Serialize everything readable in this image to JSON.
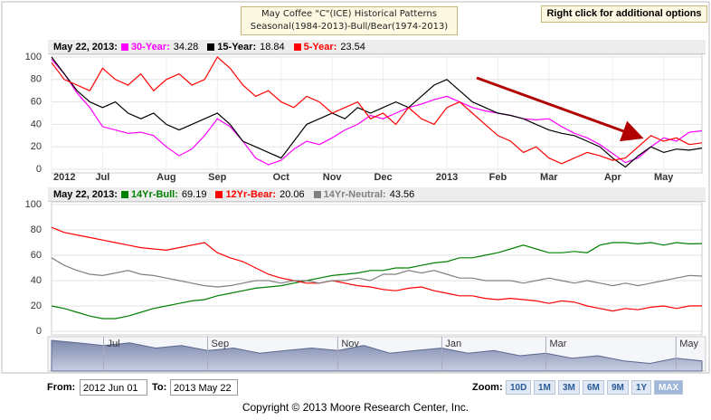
{
  "title": [
    "May Coffee \"C\"(ICE) Historical Patterns",
    "Seasonal(1984-2013)-Bull/Bear(1974-2013)"
  ],
  "options_hint": "Right click for additional options",
  "chart_data": [
    {
      "type": "line",
      "legend_date": "May 22, 2013:",
      "categories": [
        "2012",
        null,
        null,
        null,
        "Jul",
        null,
        null,
        null,
        null,
        "Aug",
        null,
        null,
        null,
        "Sep",
        null,
        null,
        null,
        null,
        "Oct",
        null,
        null,
        null,
        "Nov",
        null,
        null,
        null,
        "Dec",
        null,
        null,
        null,
        null,
        "2013",
        null,
        null,
        null,
        "Feb",
        null,
        null,
        null,
        "Mar",
        null,
        null,
        null,
        null,
        "Apr",
        null,
        null,
        null,
        "May",
        null,
        null,
        null
      ],
      "ylim": [
        0,
        100
      ],
      "yticks": [
        0,
        20,
        40,
        60,
        80,
        100
      ],
      "grid": true,
      "series": [
        {
          "name": "30-Year",
          "color": "#ff00ff",
          "current": 34.28,
          "values": [
            98,
            85,
            68,
            55,
            38,
            35,
            32,
            33,
            30,
            20,
            12,
            18,
            30,
            45,
            38,
            25,
            10,
            4,
            8,
            18,
            25,
            22,
            28,
            35,
            40,
            48,
            45,
            50,
            55,
            58,
            62,
            65,
            60,
            55,
            52,
            50,
            48,
            45,
            44,
            45,
            38,
            32,
            28,
            22,
            14,
            6,
            10,
            20,
            28,
            25,
            33,
            34.28
          ]
        },
        {
          "name": "15-Year",
          "color": "#000000",
          "current": 18.84,
          "values": [
            100,
            85,
            70,
            60,
            55,
            60,
            50,
            45,
            50,
            40,
            35,
            40,
            45,
            50,
            40,
            25,
            20,
            15,
            10,
            25,
            40,
            45,
            50,
            45,
            55,
            50,
            55,
            60,
            55,
            65,
            75,
            80,
            70,
            60,
            55,
            50,
            48,
            45,
            40,
            35,
            32,
            30,
            25,
            20,
            10,
            2,
            12,
            20,
            15,
            18,
            17,
            18.84
          ]
        },
        {
          "name": "5-Year",
          "color": "#ff0000",
          "current": 23.54,
          "values": [
            95,
            80,
            75,
            70,
            90,
            80,
            75,
            85,
            70,
            80,
            85,
            75,
            80,
            100,
            90,
            75,
            65,
            70,
            60,
            55,
            65,
            60,
            50,
            55,
            60,
            45,
            50,
            40,
            55,
            45,
            40,
            55,
            60,
            50,
            40,
            30,
            25,
            15,
            20,
            10,
            5,
            10,
            15,
            12,
            8,
            10,
            20,
            30,
            25,
            28,
            22,
            23.54
          ]
        }
      ]
    },
    {
      "type": "line",
      "legend_date": "May 22, 2013:",
      "ylim": [
        0,
        100
      ],
      "yticks": [
        0,
        20,
        40,
        60,
        80,
        100
      ],
      "grid": true,
      "series": [
        {
          "name": "14Yr-Bull",
          "color": "#008000",
          "current": 69.19,
          "values": [
            20,
            18,
            15,
            12,
            10,
            10,
            12,
            15,
            18,
            20,
            22,
            24,
            25,
            28,
            30,
            32,
            34,
            35,
            36,
            38,
            40,
            42,
            44,
            45,
            46,
            48,
            48,
            50,
            50,
            52,
            54,
            55,
            58,
            58,
            60,
            62,
            65,
            68,
            65,
            62,
            62,
            63,
            62,
            68,
            70,
            70,
            69,
            70,
            68,
            70,
            69,
            69.19
          ]
        },
        {
          "name": "12Yr-Bear",
          "color": "#ff0000",
          "current": 20.06,
          "values": [
            82,
            78,
            76,
            74,
            72,
            70,
            68,
            66,
            65,
            64,
            66,
            68,
            70,
            62,
            58,
            55,
            50,
            45,
            42,
            40,
            38,
            38,
            40,
            38,
            36,
            35,
            33,
            32,
            34,
            35,
            32,
            30,
            28,
            28,
            26,
            25,
            26,
            25,
            24,
            22,
            24,
            23,
            20,
            18,
            16,
            18,
            17,
            19,
            20,
            18,
            20,
            20.06
          ]
        },
        {
          "name": "14Yr-Neutral",
          "color": "#808080",
          "current": 43.56,
          "values": [
            58,
            52,
            48,
            45,
            44,
            46,
            48,
            45,
            44,
            42,
            40,
            38,
            36,
            35,
            36,
            38,
            40,
            40,
            38,
            40,
            40,
            38,
            40,
            40,
            42,
            40,
            45,
            45,
            48,
            46,
            48,
            45,
            42,
            42,
            40,
            40,
            40,
            38,
            40,
            42,
            40,
            38,
            40,
            38,
            36,
            38,
            36,
            38,
            40,
            42,
            44,
            43.56
          ]
        }
      ]
    }
  ],
  "navigator": {
    "type": "area",
    "categories": [
      null,
      null,
      "Jul",
      null,
      null,
      null,
      "Sep",
      null,
      null,
      null,
      null,
      "Nov",
      null,
      null,
      null,
      "Jan",
      null,
      null,
      null,
      "Mar",
      null,
      null,
      null,
      null,
      "May",
      null
    ],
    "values": [
      60,
      55,
      50,
      55,
      45,
      50,
      40,
      45,
      35,
      40,
      45,
      40,
      50,
      35,
      40,
      45,
      35,
      40,
      30,
      35,
      25,
      30,
      20,
      15,
      25,
      20
    ]
  },
  "range": {
    "from_label": "From:",
    "from": "2012 Jun 01",
    "to_label": "To:",
    "to": "2013 May 22"
  },
  "zoom": {
    "label": "Zoom:",
    "buttons": [
      "10D",
      "1M",
      "3M",
      "6M",
      "9M",
      "1Y",
      "MAX"
    ]
  },
  "copyright": "Copyright © 2013 Moore Research Center, Inc."
}
